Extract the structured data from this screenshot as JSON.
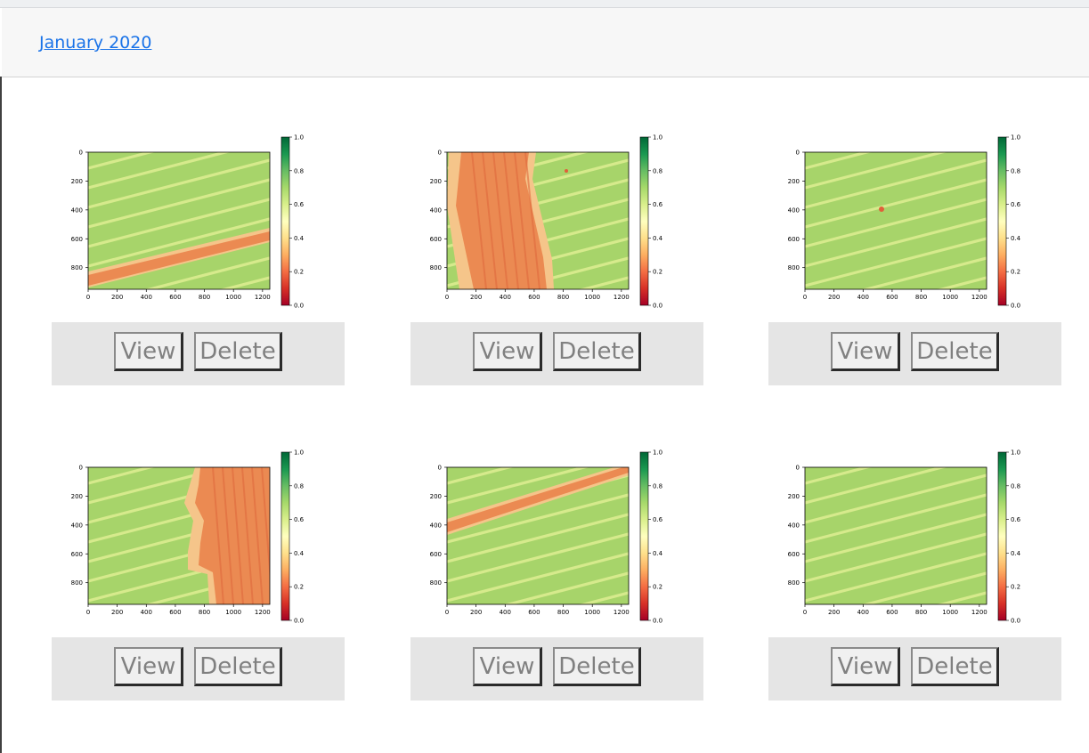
{
  "header": {
    "month_link": "January 2020"
  },
  "buttons": {
    "view_label": "View",
    "delete_label": "Delete"
  },
  "axes": {
    "x_ticks": [
      "0",
      "200",
      "400",
      "600",
      "800",
      "1000",
      "1200"
    ],
    "y_ticks": [
      "0",
      "200",
      "400",
      "600",
      "800"
    ],
    "colorbar_ticks": [
      "1.0",
      "0.8",
      "0.6",
      "0.4",
      "0.2",
      "0.0"
    ]
  },
  "colormap": [
    "#a50026",
    "#d73027",
    "#f46d43",
    "#fdae61",
    "#fee08b",
    "#ffffbf",
    "#d9ef8b",
    "#a6d96a",
    "#66bd63",
    "#1a9850",
    "#006837"
  ],
  "colors": {
    "field_green": "#a7d46a",
    "stripe": "#d9ec8e",
    "band": "#eb8a52",
    "band_edge": "#f5c58a"
  },
  "images": [
    {
      "feature": "diagonal-band-bottom"
    },
    {
      "feature": "vertical-band-left"
    },
    {
      "feature": "small-spot"
    },
    {
      "feature": "vertical-band-right"
    },
    {
      "feature": "diagonal-band-top"
    },
    {
      "feature": "plain-field"
    }
  ]
}
